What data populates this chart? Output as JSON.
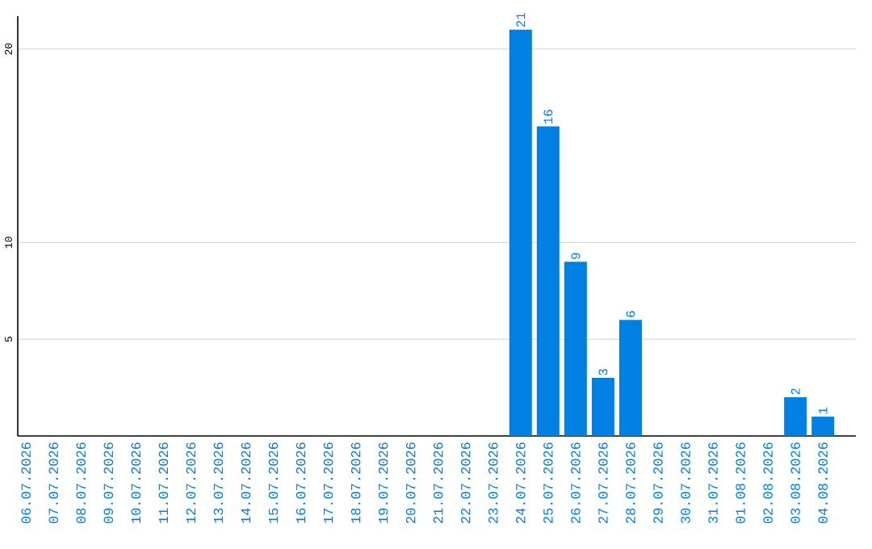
{
  "chart_data": {
    "type": "bar",
    "categories": [
      "06.07.2026",
      "07.07.2026",
      "08.07.2026",
      "09.07.2026",
      "10.07.2026",
      "11.07.2026",
      "12.07.2026",
      "13.07.2026",
      "14.07.2026",
      "15.07.2026",
      "16.07.2026",
      "17.07.2026",
      "18.07.2026",
      "19.07.2026",
      "20.07.2026",
      "21.07.2026",
      "22.07.2026",
      "23.07.2026",
      "24.07.2026",
      "25.07.2026",
      "26.07.2026",
      "27.07.2026",
      "28.07.2026",
      "29.07.2026",
      "30.07.2026",
      "31.07.2026",
      "01.08.2026",
      "02.08.2026",
      "03.08.2026",
      "04.08.2026"
    ],
    "values": [
      0,
      0,
      0,
      0,
      0,
      0,
      0,
      0,
      0,
      0,
      0,
      0,
      0,
      0,
      0,
      0,
      0,
      0,
      21,
      16,
      9,
      3,
      6,
      0,
      0,
      0,
      0,
      0,
      2,
      1
    ],
    "value_labels": [
      null,
      null,
      null,
      null,
      null,
      null,
      null,
      null,
      null,
      null,
      null,
      null,
      null,
      null,
      null,
      null,
      null,
      null,
      "21",
      "16",
      "9",
      "3",
      "6",
      null,
      null,
      null,
      null,
      null,
      "2",
      "1"
    ],
    "color": "#0080e2",
    "ylim": [
      0,
      21.7
    ],
    "yticks": [
      5,
      10,
      20
    ],
    "grid": "y"
  }
}
